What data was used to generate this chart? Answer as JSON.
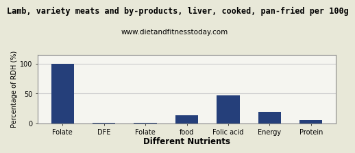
{
  "title": "Lamb, variety meats and by-products, liver, cooked, pan-fried per 100g",
  "subtitle": "www.dietandfitnesstoday.com",
  "xlabel": "Different Nutrients",
  "ylabel": "Percentage of RDH (%)",
  "categories": [
    "Folate",
    "DFE",
    "Folate",
    "food",
    "Folic acid",
    "Energy",
    "Protein"
  ],
  "values": [
    100,
    0.5,
    0.5,
    13,
    47,
    19,
    5
  ],
  "bar_color": "#253F7A",
  "ylim": [
    0,
    115
  ],
  "yticks": [
    0,
    50,
    100
  ],
  "bg_color": "#e8e8d8",
  "plot_bg_color": "#f5f5f0",
  "title_fontsize": 8.5,
  "subtitle_fontsize": 7.5,
  "xlabel_fontsize": 8.5,
  "ylabel_fontsize": 7,
  "tick_fontsize": 7,
  "grid_color": "#cccccc",
  "border_color": "#888888"
}
